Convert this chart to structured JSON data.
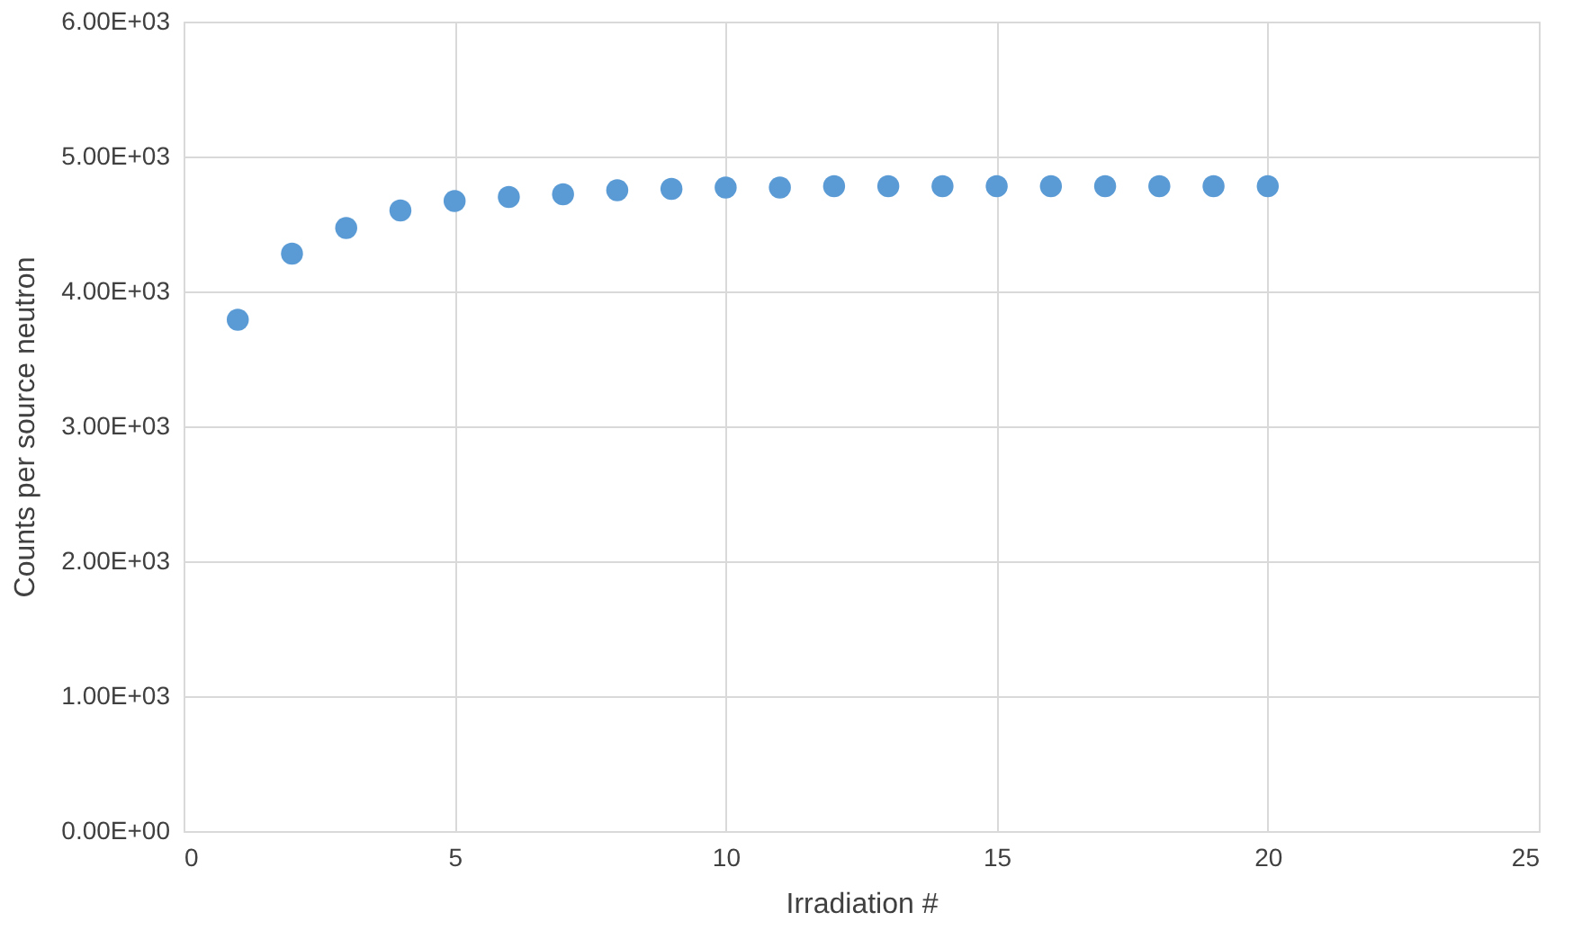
{
  "chart_data": {
    "type": "scatter",
    "xlabel": "Irradiation #",
    "ylabel": "Counts per source neutron",
    "x": [
      1,
      2,
      3,
      4,
      5,
      6,
      7,
      8,
      9,
      10,
      11,
      12,
      13,
      14,
      15,
      16,
      17,
      18,
      19,
      20
    ],
    "series": [
      {
        "color": "#5b9bd5",
        "values": [
          3790,
          4280,
          4470,
          4600,
          4670,
          4700,
          4720,
          4750,
          4760,
          4770,
          4770,
          4780,
          4780,
          4780,
          4780,
          4780,
          4780,
          4780,
          4780,
          4780
        ]
      }
    ],
    "xlim": [
      0,
      25
    ],
    "xticks": [
      0,
      5,
      10,
      15,
      20,
      25
    ],
    "ylim": [
      0,
      6000
    ],
    "yticks": [
      {
        "value": 0,
        "label": "0.00E+00"
      },
      {
        "value": 1000,
        "label": "1.00E+03"
      },
      {
        "value": 2000,
        "label": "2.00E+03"
      },
      {
        "value": 3000,
        "label": "3.00E+03"
      },
      {
        "value": 4000,
        "label": "4.00E+03"
      },
      {
        "value": 5000,
        "label": "5.00E+03"
      },
      {
        "value": 6000,
        "label": "6.00E+03"
      }
    ],
    "grid": true,
    "marker": "circle",
    "legend": false
  }
}
